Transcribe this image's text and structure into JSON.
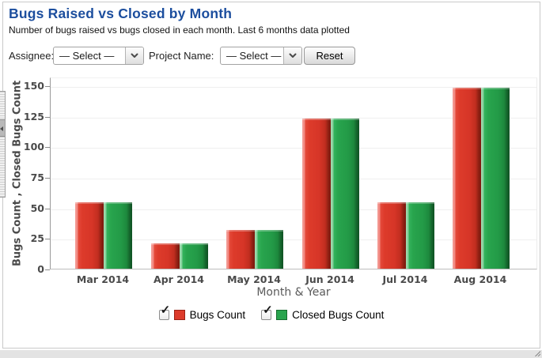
{
  "header": {
    "title": "Bugs Raised vs Closed by Month",
    "subtitle": "Number of bugs raised vs bugs closed in each month. Last 6 months data plotted"
  },
  "controls": {
    "assignee_label": "Assignee:",
    "assignee_value": "— Select —",
    "project_label": "Project Name:",
    "project_value": "— Select —",
    "reset_label": "Reset"
  },
  "chart_data": {
    "type": "bar",
    "categories": [
      "Mar 2014",
      "Apr 2014",
      "May 2014",
      "Jun 2014",
      "Jul 2014",
      "Aug 2014"
    ],
    "series": [
      {
        "name": "Bugs Count",
        "color": "#dd3b2b",
        "border_color": "#9a2115",
        "values": [
          54,
          21,
          32,
          123,
          54,
          148
        ]
      },
      {
        "name": "Closed Bugs Count",
        "color": "#28a44d",
        "border_color": "#156b2d",
        "values": [
          54,
          21,
          32,
          123,
          54,
          148
        ]
      }
    ],
    "xlabel": "Month & Year",
    "ylabel": "Bugs Count , Closed Bugs Count",
    "ylim": [
      0,
      150
    ],
    "yticks": [
      0,
      25,
      50,
      75,
      100,
      125,
      150
    ],
    "grid": true,
    "legend_position": "bottom",
    "legend_checkboxes": [
      {
        "label": "Bugs Count",
        "checked": true
      },
      {
        "label": "Closed Bugs Count",
        "checked": true
      }
    ]
  }
}
